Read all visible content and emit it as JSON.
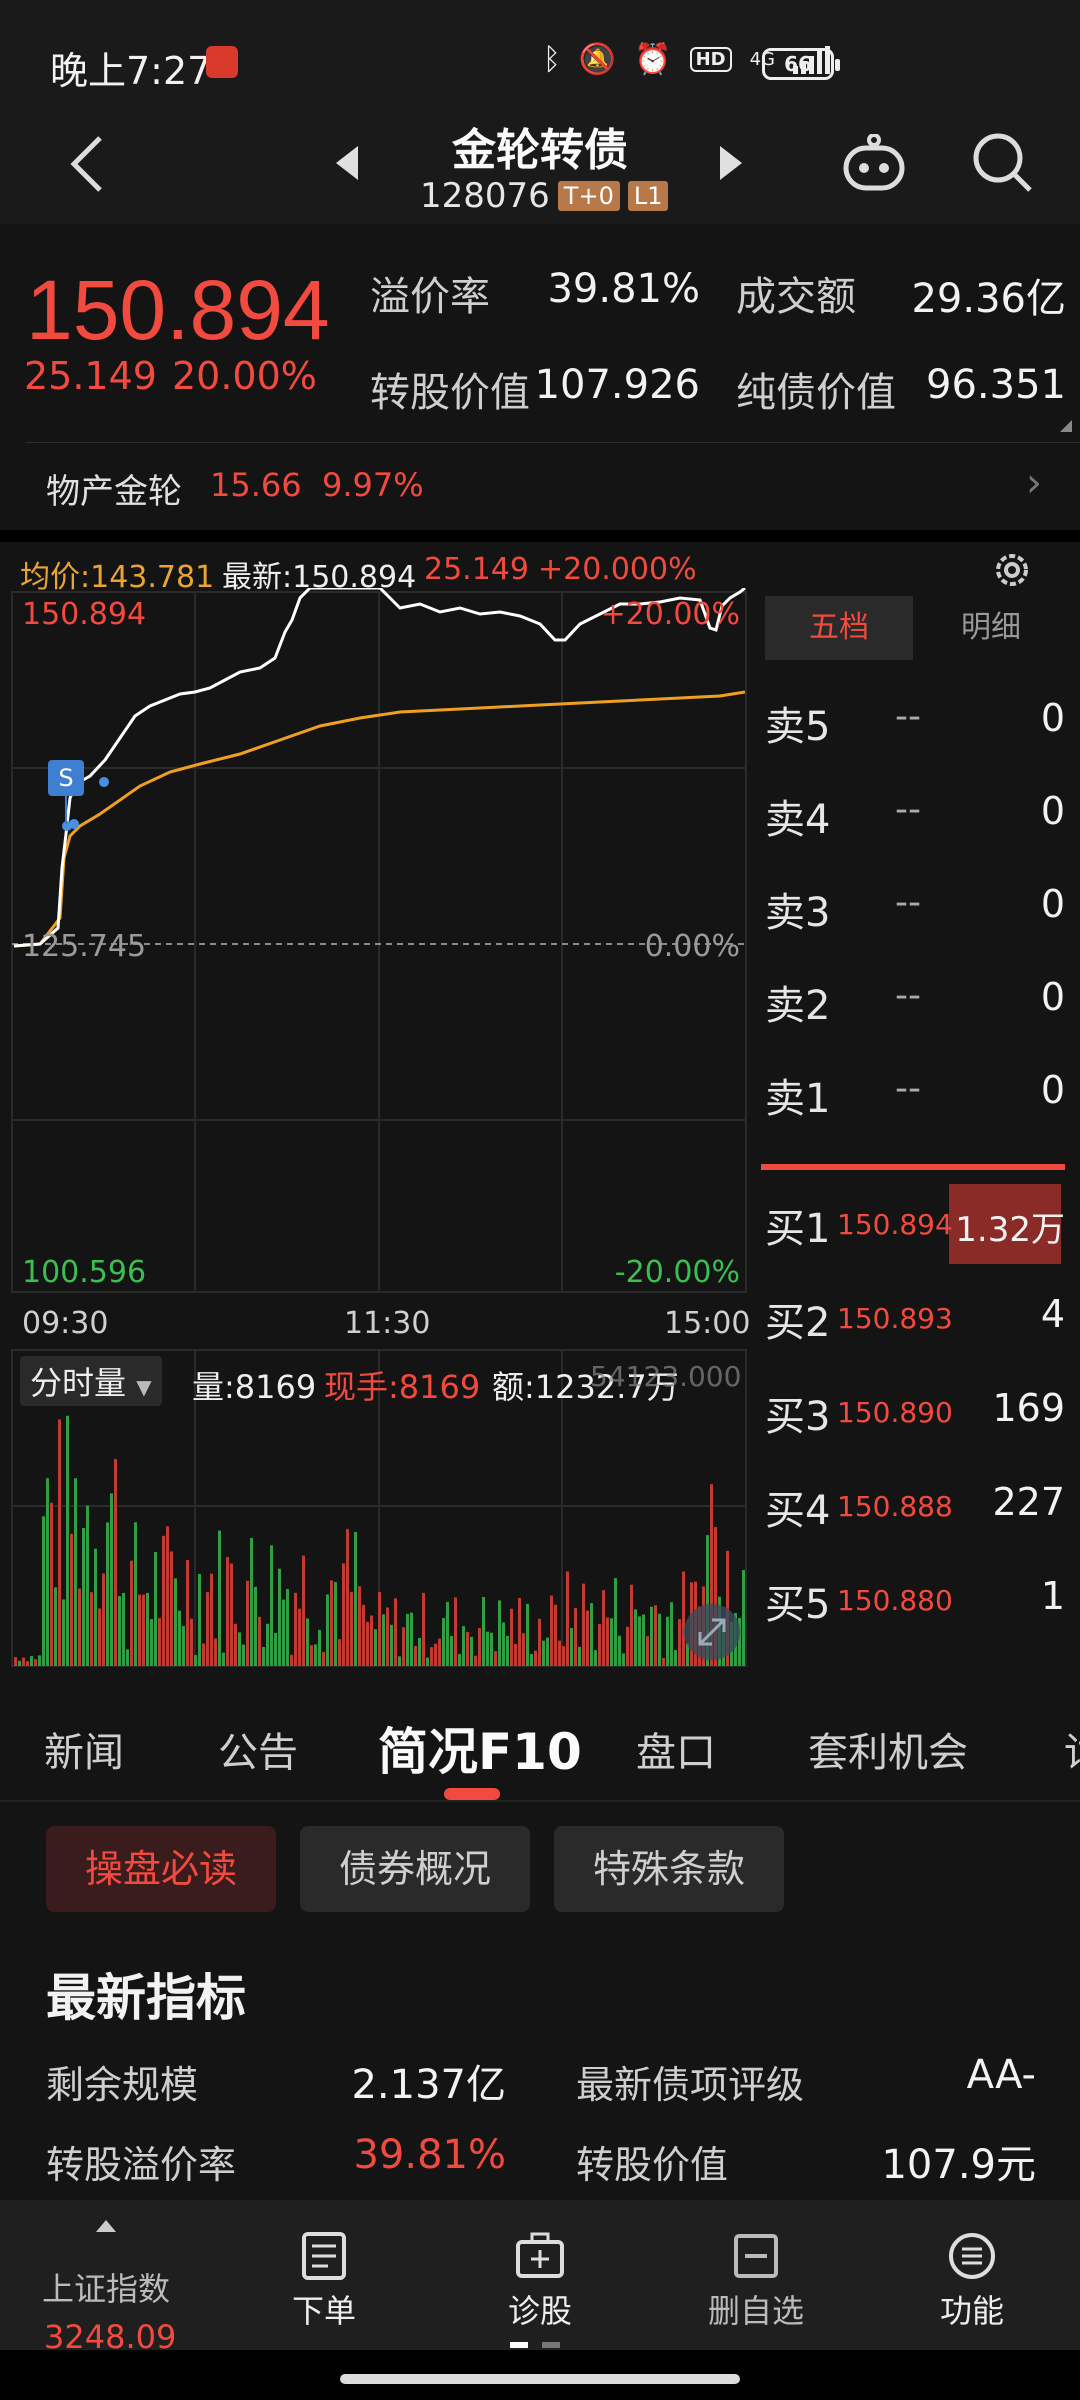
{
  "status_bar": {
    "time": "晚上7:27",
    "hd": "HD",
    "network": "4G",
    "battery": "66"
  },
  "header": {
    "title": "金轮转债",
    "code": "128076",
    "tags": [
      "T+0",
      "L1"
    ]
  },
  "quote": {
    "price": "150.894",
    "change": "25.149",
    "change_pct": "20.00%",
    "metrics": [
      {
        "label": "溢价率",
        "value": "39.81%"
      },
      {
        "label": "成交额",
        "value": "29.36亿"
      },
      {
        "label": "转股价值",
        "value": "107.926"
      },
      {
        "label": "纯债价值",
        "value": "96.351"
      }
    ],
    "stock": {
      "name": "物产金轮",
      "price": "15.66",
      "pct": "9.97%"
    }
  },
  "chart_header": {
    "avg": "均价:143.781",
    "last": "最新:150.894",
    "chg": "25.149",
    "pct": "+20.000%"
  },
  "chart_data": {
    "type": "line",
    "x_ticks": [
      "09:30",
      "11:30",
      "15:00"
    ],
    "y_labels": {
      "top": "150.894",
      "mid": "125.745",
      "bottom": "100.596",
      "top_pct": "+20.00%",
      "mid_pct": "0.00%",
      "bottom_pct": "-20.00%"
    },
    "ylim": [
      100.596,
      150.894
    ],
    "series": [],
    "marker": "S"
  },
  "volume_header": {
    "tab": "分时量",
    "vol": "量:8169",
    "hand": "现手:8169",
    "amount": "额:1232.7万",
    "max": "54123.000"
  },
  "order_book": {
    "tabs": [
      "五档",
      "明细"
    ],
    "sells": [
      {
        "label": "卖5",
        "price": "--",
        "qty": "0"
      },
      {
        "label": "卖4",
        "price": "--",
        "qty": "0"
      },
      {
        "label": "卖3",
        "price": "--",
        "qty": "0"
      },
      {
        "label": "卖2",
        "price": "--",
        "qty": "0"
      },
      {
        "label": "卖1",
        "price": "--",
        "qty": "0"
      }
    ],
    "buys": [
      {
        "label": "买1",
        "price": "150.894",
        "qty": "1.32万"
      },
      {
        "label": "买2",
        "price": "150.893",
        "qty": "4"
      },
      {
        "label": "买3",
        "price": "150.890",
        "qty": "169"
      },
      {
        "label": "买4",
        "price": "150.888",
        "qty": "227"
      },
      {
        "label": "买5",
        "price": "150.880",
        "qty": "1"
      }
    ]
  },
  "tabs": [
    "新闻",
    "公告",
    "简况F10",
    "盘口",
    "套利机会",
    "讨"
  ],
  "chips": [
    "操盘必读",
    "债券概况",
    "特殊条款"
  ],
  "section": {
    "title": "最新指标",
    "rows": [
      {
        "label": "剩余规模",
        "value": "2.137亿",
        "label2": "最新债项评级",
        "value2": "AA-"
      },
      {
        "label": "转股溢价率",
        "value": "39.81%",
        "label2": "转股价值",
        "value2": "107.9元"
      }
    ]
  },
  "bottom_nav": {
    "index_label": "上证指数",
    "index_value": "3248.09",
    "items": [
      "下单",
      "诊股",
      "删自选",
      "功能"
    ]
  }
}
